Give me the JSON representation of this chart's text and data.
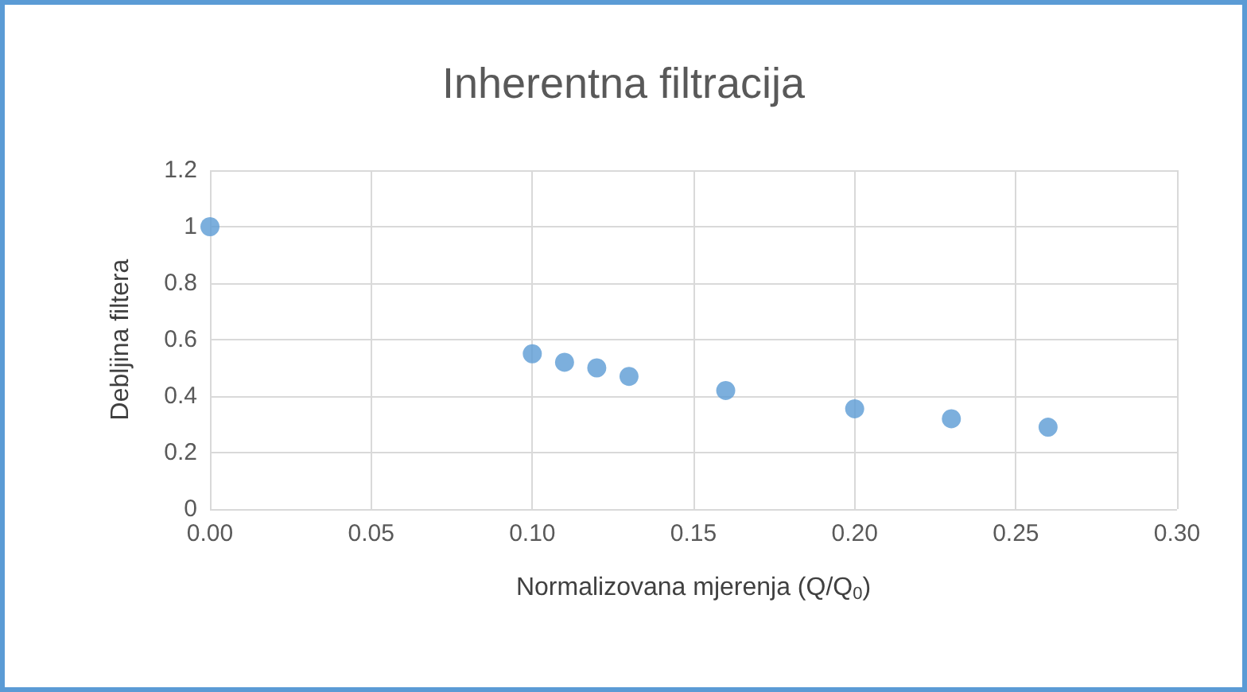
{
  "chart_data": {
    "type": "scatter",
    "title": "Inherentna filtracija",
    "xlabel": "Normalizovana mjerenja (Q/Q$_{0}$)",
    "ylabel": "Debljina filtera",
    "x": [
      0,
      0.1,
      0.11,
      0.12,
      0.13,
      0.16,
      0.2,
      0.23,
      0.26
    ],
    "values": [
      1.0,
      0.55,
      0.52,
      0.5,
      0.47,
      0.42,
      0.355,
      0.32,
      0.29
    ],
    "color": "#5b9bd5",
    "marker": "circle",
    "grid": true,
    "xlim": [
      0,
      0.3
    ],
    "xticks": [
      {
        "value": 0,
        "label": "0.00"
      },
      {
        "value": 0.05,
        "label": "0.05"
      },
      {
        "value": 0.1,
        "label": "0.10"
      },
      {
        "value": 0.15,
        "label": "0.15"
      },
      {
        "value": 0.2,
        "label": "0.20"
      },
      {
        "value": 0.25,
        "label": "0.25"
      },
      {
        "value": 0.3,
        "label": "0.30"
      }
    ],
    "ylim": [
      0,
      1.2
    ],
    "yticks": [
      0,
      0.2,
      0.4,
      0.6,
      0.8,
      1,
      1.2
    ]
  }
}
